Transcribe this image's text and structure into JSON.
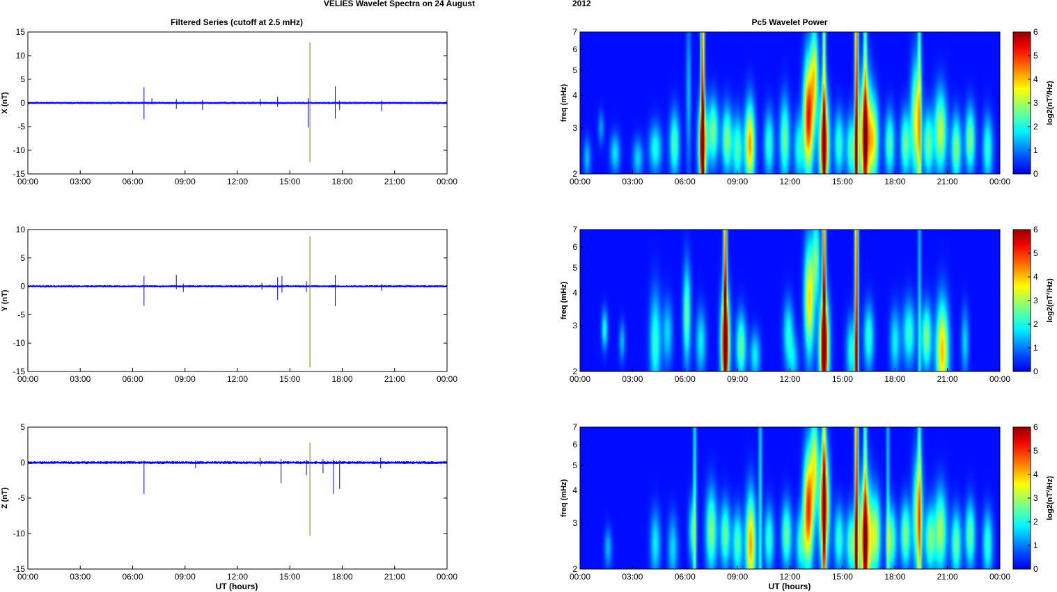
{
  "figure": {
    "title_main": "VELIES Wavelet Spectra on 24 August",
    "title_year": "2012",
    "left_title": "Filtered Series (cutoff at 2.5 mHz)",
    "right_title": "Pc5 Wavelet Power",
    "xlabel": "UT (hours)"
  },
  "colors": {
    "trace": "#0000ff",
    "spike": "#808000",
    "background_power": "#00008f",
    "colormap": "jet"
  },
  "chart_data": [
    {
      "type": "line",
      "component": "X",
      "ylabel": "X (nT)",
      "ylim": [
        -15,
        15
      ],
      "yticks": [
        -15,
        -10,
        -5,
        0,
        5,
        10,
        15
      ],
      "x_ticks": [
        "00:00",
        "03:00",
        "06:00",
        "09:00",
        "12:00",
        "15:00",
        "18:00",
        "21:00",
        "00:00"
      ],
      "x_range_hours": [
        0,
        24
      ],
      "noise_amplitude": 0.15,
      "spikes": [
        {
          "t": 6.65,
          "min": -3.4,
          "max": 3.3
        },
        {
          "t": 7.1,
          "min": -0.3,
          "max": 1.0
        },
        {
          "t": 8.5,
          "min": -1.2,
          "max": 0.8
        },
        {
          "t": 10.0,
          "min": -1.5,
          "max": 0.6
        },
        {
          "t": 13.3,
          "min": -0.6,
          "max": 0.8
        },
        {
          "t": 14.3,
          "min": -0.8,
          "max": 1.3
        },
        {
          "t": 16.05,
          "min": -5.2,
          "max": 1.0
        },
        {
          "t": 16.15,
          "min": -12.5,
          "max": 12.8
        },
        {
          "t": 17.6,
          "min": -3.3,
          "max": 3.5
        },
        {
          "t": 17.85,
          "min": -1.5,
          "max": 0.5
        },
        {
          "t": 20.25,
          "min": -1.8,
          "max": 0.5
        }
      ]
    },
    {
      "type": "line",
      "component": "Y",
      "ylabel": "Y (nT)",
      "ylim": [
        -15,
        10
      ],
      "yticks": [
        -15,
        -10,
        -5,
        0,
        5,
        10
      ],
      "x_ticks": [
        "00:00",
        "03:00",
        "06:00",
        "09:00",
        "12:00",
        "15:00",
        "18:00",
        "21:00",
        "00:00"
      ],
      "x_range_hours": [
        0,
        24
      ],
      "noise_amplitude": 0.15,
      "spikes": [
        {
          "t": 6.65,
          "min": -3.4,
          "max": 1.8
        },
        {
          "t": 8.5,
          "min": -0.5,
          "max": 2.0
        },
        {
          "t": 8.9,
          "min": -1.0,
          "max": 0.5
        },
        {
          "t": 13.4,
          "min": -0.6,
          "max": 0.6
        },
        {
          "t": 14.3,
          "min": -2.4,
          "max": 1.6
        },
        {
          "t": 14.55,
          "min": -1.1,
          "max": 1.8
        },
        {
          "t": 15.95,
          "min": -1.0,
          "max": 0.9
        },
        {
          "t": 16.15,
          "min": -14.3,
          "max": 8.8
        },
        {
          "t": 17.6,
          "min": -3.5,
          "max": 2.0
        },
        {
          "t": 20.25,
          "min": -0.8,
          "max": 0.4
        }
      ]
    },
    {
      "type": "line",
      "component": "Z",
      "ylabel": "Z (nT)",
      "ylim": [
        -15,
        5
      ],
      "yticks": [
        -15,
        -10,
        -5,
        0,
        5
      ],
      "x_ticks": [
        "00:00",
        "03:00",
        "06:00",
        "09:00",
        "12:00",
        "15:00",
        "18:00",
        "21:00",
        "00:00"
      ],
      "x_range_hours": [
        0,
        24
      ],
      "noise_amplitude": 0.15,
      "spikes": [
        {
          "t": 6.65,
          "min": -4.4,
          "max": 0.3
        },
        {
          "t": 9.6,
          "min": -0.8,
          "max": 0.3
        },
        {
          "t": 13.3,
          "min": -0.5,
          "max": 0.7
        },
        {
          "t": 14.5,
          "min": -2.9,
          "max": 0.5
        },
        {
          "t": 15.95,
          "min": -1.8,
          "max": 0.4
        },
        {
          "t": 16.15,
          "min": -10.3,
          "max": 2.8
        },
        {
          "t": 16.9,
          "min": -1.5,
          "max": 0.5
        },
        {
          "t": 17.5,
          "min": -4.4,
          "max": 0.4
        },
        {
          "t": 17.85,
          "min": -3.7,
          "max": 0.3
        },
        {
          "t": 20.2,
          "min": -0.8,
          "max": 0.7
        }
      ]
    },
    {
      "type": "heatmap",
      "component": "X",
      "ylabel": "freq (mHz)",
      "y_scale": "log",
      "ylim": [
        2,
        7
      ],
      "yticks": [
        2,
        3,
        4,
        5,
        6,
        7
      ],
      "x_ticks": [
        "00:00",
        "03:00",
        "06:00",
        "09:00",
        "12:00",
        "15:00",
        "18:00",
        "21:00",
        "00:00"
      ],
      "x_range_hours": [
        0,
        24
      ],
      "colorbar": {
        "label": "log2(nT²/Hz)",
        "range": [
          0,
          6
        ],
        "ticks": [
          0,
          1,
          2,
          3,
          4,
          5,
          6
        ]
      },
      "blobs": [
        {
          "t": 0.4,
          "f": 2.3,
          "w": 0.15,
          "s": 0.12,
          "a": 1.2
        },
        {
          "t": 1.2,
          "f": 3.0,
          "w": 0.12,
          "s": 0.1,
          "a": 1.0
        },
        {
          "t": 2.0,
          "f": 2.4,
          "w": 0.2,
          "s": 0.12,
          "a": 1.5
        },
        {
          "t": 3.3,
          "f": 2.3,
          "w": 0.2,
          "s": 0.12,
          "a": 1.4
        },
        {
          "t": 4.3,
          "f": 2.5,
          "w": 0.25,
          "s": 0.15,
          "a": 1.8
        },
        {
          "t": 5.4,
          "f": 2.6,
          "w": 0.2,
          "s": 0.2,
          "a": 2.2
        },
        {
          "t": 6.2,
          "f": 4.0,
          "w": 0.1,
          "s": 0.5,
          "a": 1.2
        },
        {
          "t": 7.0,
          "f": 2.6,
          "w": 0.18,
          "s": 0.25,
          "a": 3.8
        },
        {
          "t": 7.6,
          "f": 2.9,
          "w": 0.22,
          "s": 0.2,
          "a": 2.5
        },
        {
          "t": 8.4,
          "f": 2.7,
          "w": 0.2,
          "s": 0.2,
          "a": 2.6
        },
        {
          "t": 9.0,
          "f": 2.5,
          "w": 0.2,
          "s": 0.2,
          "a": 2.2
        },
        {
          "t": 9.7,
          "f": 2.6,
          "w": 0.2,
          "s": 0.25,
          "a": 4.0
        },
        {
          "t": 10.8,
          "f": 2.6,
          "w": 0.2,
          "s": 0.2,
          "a": 2.0
        },
        {
          "t": 11.7,
          "f": 2.7,
          "w": 0.2,
          "s": 0.25,
          "a": 2.4
        },
        {
          "t": 12.5,
          "f": 2.5,
          "w": 0.2,
          "s": 0.2,
          "a": 1.8
        },
        {
          "t": 13.05,
          "f": 3.3,
          "w": 0.2,
          "s": 0.35,
          "a": 5.0
        },
        {
          "t": 13.4,
          "f": 4.8,
          "w": 0.15,
          "s": 0.3,
          "a": 3.0
        },
        {
          "t": 13.95,
          "f": 2.6,
          "w": 0.2,
          "s": 0.3,
          "a": 4.8
        },
        {
          "t": 14.8,
          "f": 2.6,
          "w": 0.2,
          "s": 0.2,
          "a": 2.0
        },
        {
          "t": 15.5,
          "f": 2.5,
          "w": 0.2,
          "s": 0.2,
          "a": 2.2
        },
        {
          "t": 16.3,
          "f": 2.8,
          "w": 0.25,
          "s": 0.35,
          "a": 4.6
        },
        {
          "t": 16.8,
          "f": 2.7,
          "w": 0.2,
          "s": 0.25,
          "a": 2.8
        },
        {
          "t": 17.7,
          "f": 2.6,
          "w": 0.2,
          "s": 0.2,
          "a": 2.2
        },
        {
          "t": 18.6,
          "f": 2.6,
          "w": 0.2,
          "s": 0.2,
          "a": 2.4
        },
        {
          "t": 19.2,
          "f": 3.2,
          "w": 0.2,
          "s": 0.35,
          "a": 3.2
        },
        {
          "t": 19.9,
          "f": 2.6,
          "w": 0.2,
          "s": 0.2,
          "a": 2.4
        },
        {
          "t": 20.6,
          "f": 2.9,
          "w": 0.25,
          "s": 0.25,
          "a": 3.0
        },
        {
          "t": 21.5,
          "f": 2.5,
          "w": 0.2,
          "s": 0.2,
          "a": 2.6
        },
        {
          "t": 22.3,
          "f": 2.7,
          "w": 0.2,
          "s": 0.2,
          "a": 2.6
        },
        {
          "t": 23.3,
          "f": 2.5,
          "w": 0.2,
          "s": 0.2,
          "a": 2.0
        }
      ],
      "lines": [
        {
          "t": 7.0,
          "a": 6.0
        },
        {
          "t": 13.95,
          "a": 3.5
        },
        {
          "t": 15.8,
          "a": 6.0
        },
        {
          "t": 16.3,
          "a": 3.0
        },
        {
          "t": 19.4,
          "a": 2.5
        }
      ]
    },
    {
      "type": "heatmap",
      "component": "Y",
      "ylabel": "freq (mHz)",
      "y_scale": "log",
      "ylim": [
        2,
        7
      ],
      "yticks": [
        2,
        3,
        4,
        5,
        6,
        7
      ],
      "x_ticks": [
        "00:00",
        "03:00",
        "06:00",
        "09:00",
        "12:00",
        "15:00",
        "18:00",
        "21:00",
        "00:00"
      ],
      "x_range_hours": [
        0,
        24
      ],
      "colorbar": {
        "label": "log2(nT²/Hz)",
        "range": [
          0,
          6
        ],
        "ticks": [
          0,
          1,
          2,
          3,
          4,
          5,
          6
        ]
      },
      "blobs": [
        {
          "t": 1.4,
          "f": 2.9,
          "w": 0.12,
          "s": 0.12,
          "a": 1.8
        },
        {
          "t": 2.4,
          "f": 2.6,
          "w": 0.12,
          "s": 0.12,
          "a": 1.2
        },
        {
          "t": 4.3,
          "f": 2.6,
          "w": 0.22,
          "s": 0.3,
          "a": 2.0
        },
        {
          "t": 5.0,
          "f": 2.8,
          "w": 0.2,
          "s": 0.2,
          "a": 1.4
        },
        {
          "t": 6.1,
          "f": 3.3,
          "w": 0.15,
          "s": 0.3,
          "a": 2.4
        },
        {
          "t": 6.9,
          "f": 2.6,
          "w": 0.2,
          "s": 0.2,
          "a": 1.6
        },
        {
          "t": 8.3,
          "f": 2.6,
          "w": 0.18,
          "s": 0.3,
          "a": 4.6
        },
        {
          "t": 9.2,
          "f": 2.5,
          "w": 0.2,
          "s": 0.2,
          "a": 2.4
        },
        {
          "t": 10.0,
          "f": 2.3,
          "w": 0.2,
          "s": 0.15,
          "a": 1.6
        },
        {
          "t": 11.9,
          "f": 2.8,
          "w": 0.2,
          "s": 0.2,
          "a": 1.8
        },
        {
          "t": 12.2,
          "f": 2.2,
          "w": 0.2,
          "s": 0.15,
          "a": 1.2
        },
        {
          "t": 13.1,
          "f": 3.8,
          "w": 0.2,
          "s": 0.35,
          "a": 3.6
        },
        {
          "t": 13.5,
          "f": 5.5,
          "w": 0.15,
          "s": 0.25,
          "a": 2.2
        },
        {
          "t": 13.95,
          "f": 2.5,
          "w": 0.2,
          "s": 0.3,
          "a": 4.8
        },
        {
          "t": 15.5,
          "f": 2.4,
          "w": 0.2,
          "s": 0.2,
          "a": 1.8
        },
        {
          "t": 16.5,
          "f": 2.7,
          "w": 0.2,
          "s": 0.2,
          "a": 2.0
        },
        {
          "t": 18.0,
          "f": 2.6,
          "w": 0.2,
          "s": 0.2,
          "a": 1.6
        },
        {
          "t": 18.8,
          "f": 2.8,
          "w": 0.25,
          "s": 0.2,
          "a": 2.0
        },
        {
          "t": 19.8,
          "f": 2.7,
          "w": 0.2,
          "s": 0.2,
          "a": 2.6
        },
        {
          "t": 20.7,
          "f": 2.4,
          "w": 0.25,
          "s": 0.3,
          "a": 3.8
        },
        {
          "t": 22.0,
          "f": 2.6,
          "w": 0.15,
          "s": 0.2,
          "a": 1.4
        }
      ],
      "lines": [
        {
          "t": 8.3,
          "a": 6.0
        },
        {
          "t": 13.95,
          "a": 6.0
        },
        {
          "t": 15.8,
          "a": 6.0
        },
        {
          "t": 19.4,
          "a": 1.5
        }
      ]
    },
    {
      "type": "heatmap",
      "component": "Z",
      "ylabel": "freq (mHz)",
      "y_scale": "log",
      "ylim": [
        2,
        7
      ],
      "yticks": [
        2,
        3,
        4,
        5,
        6,
        7
      ],
      "x_ticks": [
        "00:00",
        "03:00",
        "06:00",
        "09:00",
        "12:00",
        "15:00",
        "18:00",
        "21:00",
        "00:00"
      ],
      "x_range_hours": [
        0,
        24
      ],
      "colorbar": {
        "label": "log2(nT²/Hz)",
        "range": [
          0,
          6
        ],
        "ticks": [
          0,
          1,
          2,
          3,
          4,
          5,
          6
        ]
      },
      "blobs": [
        {
          "t": 1.6,
          "f": 2.4,
          "w": 0.15,
          "s": 0.12,
          "a": 1.2
        },
        {
          "t": 4.3,
          "f": 2.5,
          "w": 0.2,
          "s": 0.2,
          "a": 1.6
        },
        {
          "t": 5.3,
          "f": 2.4,
          "w": 0.2,
          "s": 0.2,
          "a": 1.4
        },
        {
          "t": 6.4,
          "f": 2.8,
          "w": 0.15,
          "s": 0.2,
          "a": 1.6
        },
        {
          "t": 7.5,
          "f": 2.8,
          "w": 0.22,
          "s": 0.25,
          "a": 2.6
        },
        {
          "t": 8.3,
          "f": 2.7,
          "w": 0.2,
          "s": 0.2,
          "a": 2.4
        },
        {
          "t": 9.0,
          "f": 2.5,
          "w": 0.2,
          "s": 0.2,
          "a": 2.2
        },
        {
          "t": 9.75,
          "f": 2.5,
          "w": 0.2,
          "s": 0.3,
          "a": 4.0
        },
        {
          "t": 10.8,
          "f": 2.6,
          "w": 0.2,
          "s": 0.2,
          "a": 2.0
        },
        {
          "t": 11.8,
          "f": 2.7,
          "w": 0.2,
          "s": 0.2,
          "a": 2.4
        },
        {
          "t": 12.6,
          "f": 2.5,
          "w": 0.2,
          "s": 0.2,
          "a": 1.8
        },
        {
          "t": 13.05,
          "f": 3.4,
          "w": 0.2,
          "s": 0.35,
          "a": 4.8
        },
        {
          "t": 13.4,
          "f": 5.2,
          "w": 0.15,
          "s": 0.3,
          "a": 2.8
        },
        {
          "t": 13.95,
          "f": 3.5,
          "w": 0.2,
          "s": 0.35,
          "a": 4.6
        },
        {
          "t": 14.8,
          "f": 2.6,
          "w": 0.2,
          "s": 0.2,
          "a": 2.0
        },
        {
          "t": 15.5,
          "f": 2.5,
          "w": 0.2,
          "s": 0.2,
          "a": 2.4
        },
        {
          "t": 16.3,
          "f": 2.6,
          "w": 0.25,
          "s": 0.35,
          "a": 4.6
        },
        {
          "t": 16.9,
          "f": 2.7,
          "w": 0.2,
          "s": 0.25,
          "a": 2.8
        },
        {
          "t": 17.8,
          "f": 2.6,
          "w": 0.2,
          "s": 0.2,
          "a": 2.4
        },
        {
          "t": 18.6,
          "f": 2.7,
          "w": 0.2,
          "s": 0.2,
          "a": 2.6
        },
        {
          "t": 19.3,
          "f": 3.2,
          "w": 0.2,
          "s": 0.35,
          "a": 3.0
        },
        {
          "t": 20.0,
          "f": 2.6,
          "w": 0.2,
          "s": 0.2,
          "a": 2.4
        },
        {
          "t": 20.6,
          "f": 2.8,
          "w": 0.25,
          "s": 0.25,
          "a": 2.8
        },
        {
          "t": 21.5,
          "f": 2.5,
          "w": 0.2,
          "s": 0.2,
          "a": 2.4
        },
        {
          "t": 22.3,
          "f": 2.7,
          "w": 0.2,
          "s": 0.2,
          "a": 2.4
        },
        {
          "t": 23.3,
          "f": 2.5,
          "w": 0.2,
          "s": 0.2,
          "a": 2.0
        }
      ],
      "lines": [
        {
          "t": 6.55,
          "a": 2.0
        },
        {
          "t": 10.3,
          "a": 1.8
        },
        {
          "t": 13.95,
          "a": 3.5
        },
        {
          "t": 15.8,
          "a": 6.0
        },
        {
          "t": 16.3,
          "a": 3.0
        },
        {
          "t": 17.6,
          "a": 1.6
        },
        {
          "t": 19.4,
          "a": 2.4
        }
      ]
    }
  ]
}
